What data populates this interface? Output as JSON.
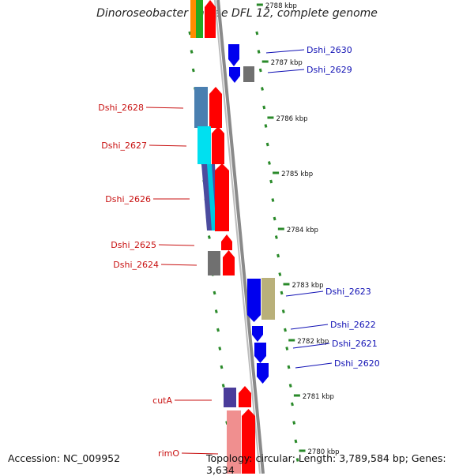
{
  "title": "Dinoroseobacter shibae DFL 12, complete genome",
  "footer": {
    "accession": "Accession: NC_009952",
    "summary": "Topology: circular; Length: 3,789,584 bp; Genes: 3,634"
  },
  "colors": {
    "backbone": "#8a8a8a",
    "tick": "#2a8a2a",
    "label_left": "#c81010",
    "label_right": "#1010b4",
    "gene_red": "#ff0000",
    "gene_blue": "#0000ee",
    "gene_gray": "#707070"
  },
  "kbp_labels": [
    "2788 kbp",
    "2787 kbp",
    "2786 kbp",
    "2785 kbp",
    "2784 kbp",
    "2783 kbp",
    "2782 kbp",
    "2781 kbp",
    "2780 kbp"
  ],
  "left_genes": [
    "Dshi_2628",
    "Dshi_2627",
    "Dshi_2626",
    "Dshi_2625",
    "Dshi_2624",
    "cutA",
    "rimO"
  ],
  "right_genes": [
    "Dshi_2630",
    "Dshi_2629",
    "Dshi_2623",
    "Dshi_2622",
    "Dshi_2621",
    "Dshi_2620"
  ]
}
